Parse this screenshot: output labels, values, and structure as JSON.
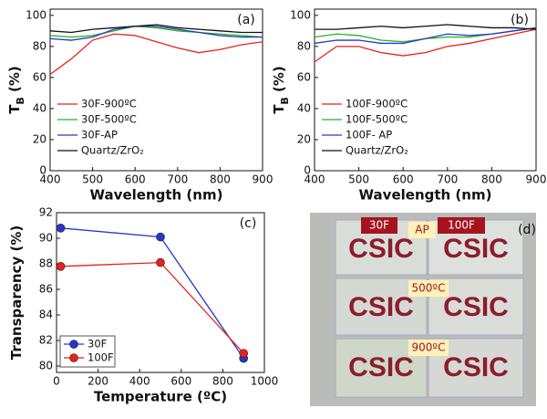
{
  "chart_data": [
    {
      "type": "line",
      "panel_label": "(a)",
      "ylabel": [
        "T",
        "B",
        " (%)"
      ],
      "xlabel": "Wavelength (nm)",
      "x": [
        400,
        450,
        500,
        550,
        600,
        650,
        700,
        750,
        800,
        850,
        900
      ],
      "xlim": [
        400,
        900
      ],
      "xticks": [
        400,
        500,
        600,
        700,
        800,
        900
      ],
      "ylim": [
        0,
        104
      ],
      "yticks": [
        0,
        20,
        40,
        60,
        80,
        100
      ],
      "legend": "lower-left",
      "series": [
        {
          "name": "30F-900ºC",
          "color": "#e8211b",
          "values": [
            62,
            72,
            84,
            88,
            87,
            83,
            79,
            76,
            78,
            81,
            83
          ]
        },
        {
          "name": "30F-500ºC",
          "color": "#27b51f",
          "values": [
            87,
            86,
            87,
            90,
            93,
            92,
            90,
            89,
            88,
            87,
            86
          ]
        },
        {
          "name": "30F-AP",
          "color": "#2637c9",
          "values": [
            85,
            84,
            86,
            91,
            93,
            93,
            91,
            89,
            87,
            86,
            86
          ]
        },
        {
          "name": "Quartz/ZrO₂",
          "color": "#111111",
          "values": [
            90,
            89,
            91,
            92,
            93,
            94,
            92,
            91,
            90,
            89,
            89
          ]
        }
      ]
    },
    {
      "type": "line",
      "panel_label": "(b)",
      "ylabel": [
        "T",
        "B",
        " (%)"
      ],
      "xlabel": "Wavelength (nm)",
      "x": [
        400,
        450,
        500,
        550,
        600,
        650,
        700,
        750,
        800,
        850,
        900
      ],
      "xlim": [
        400,
        900
      ],
      "xticks": [
        400,
        500,
        600,
        700,
        800,
        900
      ],
      "ylim": [
        0,
        104
      ],
      "yticks": [
        0,
        20,
        40,
        60,
        80,
        100
      ],
      "legend": "lower-left",
      "series": [
        {
          "name": "100F-900ºC",
          "color": "#e8211b",
          "values": [
            70,
            80,
            80,
            76,
            74,
            76,
            80,
            82,
            85,
            88,
            91
          ]
        },
        {
          "name": "100F-500ºC",
          "color": "#27b51f",
          "values": [
            86,
            88,
            87,
            84,
            83,
            85,
            86,
            86,
            88,
            90,
            92
          ]
        },
        {
          "name": "100F- AP",
          "color": "#2637c9",
          "values": [
            82,
            84,
            84,
            82,
            82,
            85,
            88,
            87,
            88,
            90,
            92
          ]
        },
        {
          "name": "Quartz/ZrO₂",
          "color": "#111111",
          "values": [
            91,
            91,
            92,
            93,
            92,
            93,
            94,
            93,
            92,
            92,
            91
          ]
        }
      ]
    },
    {
      "type": "line",
      "markers": true,
      "panel_label": "(c)",
      "ylabel": [
        "Transparency (%)"
      ],
      "xlabel": "Temperature (ºC)",
      "x": [
        20,
        500,
        900
      ],
      "xlim": [
        0,
        1000
      ],
      "xticks": [
        0,
        200,
        400,
        600,
        800,
        1000
      ],
      "ylim": [
        79.5,
        92
      ],
      "yticks": [
        80,
        82,
        84,
        86,
        88,
        90,
        92
      ],
      "legend": "lower-left",
      "series": [
        {
          "name": "30F",
          "color": "#2637c9",
          "values": [
            90.8,
            90.1,
            80.6
          ]
        },
        {
          "name": "100F",
          "color": "#e8211b",
          "values": [
            87.8,
            88.1,
            81.0
          ]
        }
      ]
    }
  ],
  "photo": {
    "panel_label": "(d)",
    "labels": [
      "30F",
      "AP",
      "100F",
      "500ºC",
      "900ºC"
    ],
    "logo": "CSIC"
  }
}
